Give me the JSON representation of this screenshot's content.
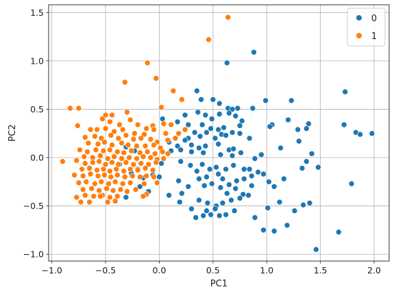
{
  "chart_data": {
    "type": "scatter",
    "xlabel": "PC1",
    "ylabel": "PC2",
    "xlim": [
      -1.03,
      2.14
    ],
    "ylim": [
      -1.07,
      1.58
    ],
    "xticks": [
      -1.0,
      -0.5,
      0.0,
      0.5,
      1.0,
      1.5,
      2.0
    ],
    "yticks": [
      -1.0,
      -0.5,
      0.0,
      0.5,
      1.0,
      1.5
    ],
    "xtick_labels": [
      "−1.0",
      "−0.5",
      "0.0",
      "0.5",
      "1.0",
      "1.5",
      "2.0"
    ],
    "ytick_labels": [
      "−1.0",
      "−0.5",
      "0.0",
      "0.5",
      "1.0",
      "1.5"
    ],
    "grid": true,
    "legend_position": "top-right",
    "colors": {
      "0": "#1f77b4",
      "1": "#ff7f0e"
    },
    "series": [
      {
        "name": "0",
        "color": "#1f77b4",
        "points": [
          [
            0.63,
            0.98
          ],
          [
            0.35,
            0.69
          ],
          [
            0.39,
            0.6
          ],
          [
            0.5,
            0.6
          ],
          [
            0.56,
            0.56
          ],
          [
            0.64,
            0.51
          ],
          [
            0.68,
            0.5
          ],
          [
            0.73,
            0.51
          ],
          [
            0.87,
            0.51
          ],
          [
            0.99,
            0.59
          ],
          [
            1.23,
            0.59
          ],
          [
            1.73,
            0.68
          ],
          [
            0.88,
            1.09
          ],
          [
            0.24,
            0.44
          ],
          [
            0.36,
            0.47
          ],
          [
            0.43,
            0.44
          ],
          [
            0.49,
            0.4
          ],
          [
            0.56,
            0.45
          ],
          [
            0.65,
            0.46
          ],
          [
            0.71,
            0.43
          ],
          [
            0.77,
            0.38
          ],
          [
            0.03,
            0.4
          ],
          [
            0.17,
            0.37
          ],
          [
            0.27,
            0.34
          ],
          [
            0.4,
            0.34
          ],
          [
            0.48,
            0.3
          ],
          [
            0.55,
            0.29
          ],
          [
            0.6,
            0.31
          ],
          [
            0.75,
            0.33
          ],
          [
            1.05,
            0.34
          ],
          [
            1.2,
            0.39
          ],
          [
            0.27,
            0.2
          ],
          [
            0.33,
            0.26
          ],
          [
            0.38,
            0.22
          ],
          [
            0.44,
            0.26
          ],
          [
            0.52,
            0.2
          ],
          [
            0.58,
            0.24
          ],
          [
            0.62,
            0.23
          ],
          [
            0.68,
            0.26
          ],
          [
            0.75,
            0.25
          ],
          [
            0.84,
            0.2
          ],
          [
            0.09,
            0.16
          ],
          [
            0.17,
            0.12
          ],
          [
            0.24,
            0.18
          ],
          [
            0.3,
            0.13
          ],
          [
            0.37,
            0.1
          ],
          [
            0.43,
            0.12
          ],
          [
            0.55,
            0.14
          ],
          [
            0.65,
            0.08
          ],
          [
            0.69,
            0.09
          ],
          [
            0.11,
            0.07
          ],
          [
            0.2,
            0.08
          ],
          [
            0.3,
            0.06
          ],
          [
            0.41,
            0.05
          ],
          [
            0.57,
            0.03
          ],
          [
            0.68,
            0.02
          ],
          [
            0.76,
            0.05
          ],
          [
            0.89,
            -0.01
          ],
          [
            0.95,
            0.03
          ],
          [
            1.13,
            0.1
          ],
          [
            1.03,
            0.32
          ],
          [
            1.29,
            0.29
          ],
          [
            1.39,
            0.35
          ],
          [
            1.98,
            0.25
          ],
          [
            1.83,
            0.26
          ],
          [
            1.87,
            0.24
          ],
          [
            1.72,
            0.34
          ],
          [
            1.3,
            0.17
          ],
          [
            1.37,
            0.3
          ],
          [
            0.2,
            -0.04
          ],
          [
            0.29,
            -0.08
          ],
          [
            0.4,
            -0.07
          ],
          [
            0.47,
            -0.12
          ],
          [
            0.53,
            -0.1
          ],
          [
            0.62,
            -0.12
          ],
          [
            0.69,
            -0.08
          ],
          [
            0.79,
            -0.12
          ],
          [
            0.84,
            -0.12
          ],
          [
            0.92,
            -0.15
          ],
          [
            0.35,
            -0.14
          ],
          [
            0.44,
            -0.2
          ],
          [
            0.55,
            -0.17
          ],
          [
            0.59,
            -0.22
          ],
          [
            0.65,
            -0.28
          ],
          [
            0.72,
            -0.24
          ],
          [
            0.79,
            -0.22
          ],
          [
            0.86,
            -0.19
          ],
          [
            0.97,
            -0.17
          ],
          [
            1.02,
            -0.25
          ],
          [
            1.07,
            -0.3
          ],
          [
            1.16,
            -0.22
          ],
          [
            1.33,
            -0.11
          ],
          [
            1.37,
            -0.04
          ],
          [
            1.42,
            0.04
          ],
          [
            1.48,
            -0.1
          ],
          [
            1.79,
            -0.27
          ],
          [
            0.18,
            -0.24
          ],
          [
            0.27,
            -0.3
          ],
          [
            0.37,
            -0.22
          ],
          [
            0.42,
            -0.29
          ],
          [
            0.49,
            -0.27
          ],
          [
            0.57,
            -0.31
          ],
          [
            0.63,
            -0.37
          ],
          [
            0.71,
            -0.32
          ],
          [
            0.78,
            -0.38
          ],
          [
            0.86,
            -0.29
          ],
          [
            0.09,
            -0.39
          ],
          [
            0.21,
            -0.37
          ],
          [
            0.37,
            -0.44
          ],
          [
            0.45,
            -0.47
          ],
          [
            0.53,
            -0.5
          ],
          [
            0.59,
            -0.47
          ],
          [
            0.67,
            -0.44
          ],
          [
            0.75,
            -0.42
          ],
          [
            0.83,
            -0.39
          ],
          [
            0.19,
            -0.46
          ],
          [
            0.3,
            -0.53
          ],
          [
            0.44,
            -0.55
          ],
          [
            0.52,
            -0.53
          ],
          [
            0.56,
            -0.6
          ],
          [
            0.62,
            -0.59
          ],
          [
            0.7,
            -0.55
          ],
          [
            0.34,
            -0.62
          ],
          [
            0.41,
            -0.6
          ],
          [
            0.48,
            -0.59
          ],
          [
            1.01,
            -0.52
          ],
          [
            1.12,
            -0.46
          ],
          [
            1.19,
            -0.7
          ],
          [
            1.26,
            -0.55
          ],
          [
            0.89,
            -0.62
          ],
          [
            0.97,
            -0.75
          ],
          [
            1.07,
            -0.76
          ],
          [
            1.34,
            -0.49
          ],
          [
            1.4,
            -0.47
          ],
          [
            1.46,
            -0.95
          ],
          [
            1.67,
            -0.77
          ],
          [
            -0.31,
            -0.41
          ],
          [
            -0.18,
            -0.3
          ],
          [
            -0.15,
            -0.21
          ],
          [
            -0.1,
            -0.35
          ],
          [
            -0.06,
            -0.18
          ],
          [
            0.0,
            -0.2
          ],
          [
            0.02,
            -0.06
          ],
          [
            -0.37,
            -0.07
          ],
          [
            -0.26,
            -0.16
          ],
          [
            -0.2,
            -0.12
          ],
          [
            -0.31,
            0.11
          ],
          [
            -0.23,
            0.07
          ]
        ]
      },
      {
        "name": "1",
        "color": "#ff7f0e",
        "points": [
          [
            0.64,
            1.45
          ],
          [
            0.46,
            1.22
          ],
          [
            -0.11,
            0.98
          ],
          [
            -0.32,
            0.78
          ],
          [
            -0.03,
            0.82
          ],
          [
            0.13,
            0.69
          ],
          [
            0.21,
            0.6
          ],
          [
            0.02,
            0.52
          ],
          [
            -0.83,
            0.51
          ],
          [
            -0.75,
            0.51
          ],
          [
            -0.5,
            0.44
          ],
          [
            -0.44,
            0.44
          ],
          [
            -0.3,
            0.47
          ],
          [
            -0.53,
            0.4
          ],
          [
            -0.46,
            0.37
          ],
          [
            -0.37,
            0.34
          ],
          [
            -0.27,
            0.39
          ],
          [
            -0.2,
            0.34
          ],
          [
            -0.12,
            0.3
          ],
          [
            -0.06,
            0.33
          ],
          [
            0.04,
            0.35
          ],
          [
            0.11,
            0.34
          ],
          [
            -0.76,
            0.33
          ],
          [
            -0.64,
            0.29
          ],
          [
            -0.58,
            0.29
          ],
          [
            -0.5,
            0.3
          ],
          [
            -0.42,
            0.27
          ],
          [
            -0.34,
            0.29
          ],
          [
            -0.23,
            0.25
          ],
          [
            -0.14,
            0.24
          ],
          [
            -0.05,
            0.29
          ],
          [
            0.06,
            0.25
          ],
          [
            0.18,
            0.25
          ],
          [
            0.24,
            0.29
          ],
          [
            -0.69,
            0.21
          ],
          [
            -0.6,
            0.22
          ],
          [
            -0.54,
            0.2
          ],
          [
            -0.45,
            0.23
          ],
          [
            -0.38,
            0.2
          ],
          [
            -0.31,
            0.23
          ],
          [
            -0.24,
            0.19
          ],
          [
            -0.17,
            0.2
          ],
          [
            -0.08,
            0.19
          ],
          [
            -0.02,
            0.16
          ],
          [
            0.08,
            0.18
          ],
          [
            0.15,
            0.2
          ],
          [
            -0.66,
            0.15
          ],
          [
            -0.57,
            0.14
          ],
          [
            -0.51,
            0.16
          ],
          [
            -0.44,
            0.13
          ],
          [
            -0.35,
            0.15
          ],
          [
            -0.29,
            0.13
          ],
          [
            -0.21,
            0.12
          ],
          [
            -0.13,
            0.12
          ],
          [
            -0.05,
            0.13
          ],
          [
            0.01,
            0.1
          ],
          [
            -0.74,
            0.08
          ],
          [
            -0.67,
            0.06
          ],
          [
            -0.59,
            0.08
          ],
          [
            -0.52,
            0.07
          ],
          [
            -0.46,
            0.08
          ],
          [
            -0.39,
            0.06
          ],
          [
            -0.33,
            0.05
          ],
          [
            -0.26,
            0.07
          ],
          [
            -0.18,
            0.05
          ],
          [
            -0.11,
            0.06
          ],
          [
            -0.04,
            0.04
          ],
          [
            0.03,
            0.06
          ],
          [
            0.08,
            0.04
          ],
          [
            -0.7,
            0.01
          ],
          [
            -0.62,
            0.0
          ],
          [
            -0.55,
            0.02
          ],
          [
            -0.48,
            -0.01
          ],
          [
            -0.42,
            0.01
          ],
          [
            -0.35,
            -0.01
          ],
          [
            -0.28,
            0.0
          ],
          [
            -0.21,
            -0.01
          ],
          [
            -0.15,
            0.01
          ],
          [
            -0.08,
            0.0
          ],
          [
            -0.02,
            -0.02
          ],
          [
            0.04,
            -0.01
          ],
          [
            -0.9,
            -0.04
          ],
          [
            -0.77,
            -0.03
          ],
          [
            -0.69,
            -0.06
          ],
          [
            -0.62,
            -0.05
          ],
          [
            -0.56,
            -0.04
          ],
          [
            -0.5,
            -0.07
          ],
          [
            -0.44,
            -0.05
          ],
          [
            -0.38,
            -0.07
          ],
          [
            -0.31,
            -0.05
          ],
          [
            -0.24,
            -0.07
          ],
          [
            -0.17,
            -0.06
          ],
          [
            -0.1,
            -0.07
          ],
          [
            -0.03,
            -0.05
          ],
          [
            -0.72,
            -0.12
          ],
          [
            -0.65,
            -0.11
          ],
          [
            -0.58,
            -0.13
          ],
          [
            -0.52,
            -0.12
          ],
          [
            -0.46,
            -0.14
          ],
          [
            -0.4,
            -0.12
          ],
          [
            -0.33,
            -0.14
          ],
          [
            -0.27,
            -0.12
          ],
          [
            -0.2,
            -0.13
          ],
          [
            -0.13,
            -0.11
          ],
          [
            -0.06,
            -0.13
          ],
          [
            -0.79,
            -0.18
          ],
          [
            -0.71,
            -0.19
          ],
          [
            -0.64,
            -0.17
          ],
          [
            -0.57,
            -0.19
          ],
          [
            -0.51,
            -0.18
          ],
          [
            -0.45,
            -0.2
          ],
          [
            -0.39,
            -0.18
          ],
          [
            -0.32,
            -0.2
          ],
          [
            -0.25,
            -0.19
          ],
          [
            -0.18,
            -0.2
          ],
          [
            -0.12,
            -0.19
          ],
          [
            -0.05,
            -0.2
          ],
          [
            -0.75,
            -0.26
          ],
          [
            -0.68,
            -0.25
          ],
          [
            -0.6,
            -0.27
          ],
          [
            -0.54,
            -0.25
          ],
          [
            -0.47,
            -0.27
          ],
          [
            -0.41,
            -0.25
          ],
          [
            -0.34,
            -0.27
          ],
          [
            -0.27,
            -0.26
          ],
          [
            -0.14,
            -0.27
          ],
          [
            -0.02,
            -0.26
          ],
          [
            -0.71,
            -0.33
          ],
          [
            -0.63,
            -0.32
          ],
          [
            -0.56,
            -0.34
          ],
          [
            -0.49,
            -0.32
          ],
          [
            -0.43,
            -0.34
          ],
          [
            -0.36,
            -0.33
          ],
          [
            -0.3,
            -0.35
          ],
          [
            -0.22,
            -0.33
          ],
          [
            -0.12,
            -0.38
          ],
          [
            -0.77,
            -0.41
          ],
          [
            -0.69,
            -0.39
          ],
          [
            -0.61,
            -0.4
          ],
          [
            -0.53,
            -0.39
          ],
          [
            -0.46,
            -0.41
          ],
          [
            -0.39,
            -0.4
          ],
          [
            -0.15,
            -0.4
          ],
          [
            -0.73,
            -0.46
          ],
          [
            -0.65,
            -0.46
          ],
          [
            -0.48,
            -0.46
          ],
          [
            -0.41,
            -0.45
          ],
          [
            -0.55,
            -0.4
          ]
        ]
      }
    ]
  }
}
